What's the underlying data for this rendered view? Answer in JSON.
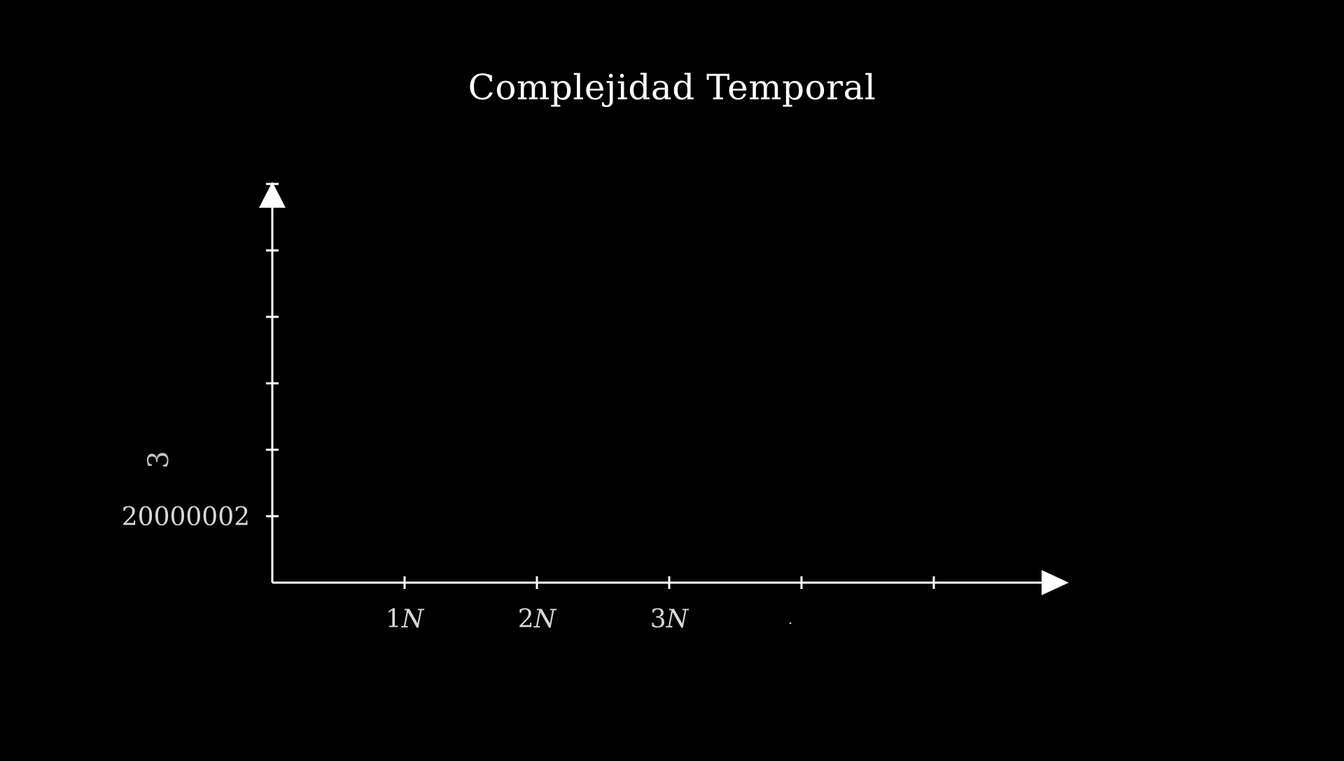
{
  "chart_data": {
    "type": "line",
    "title": "Complejidad Temporal",
    "xlabel": "",
    "ylabel": "",
    "x_ticks": [
      "1N",
      "2N",
      "3N",
      ".",
      ""
    ],
    "y_ticks": [
      "20000002",
      "",
      "",
      "",
      "",
      ""
    ],
    "y_tick_partial_glyph": "3",
    "series": [],
    "grid": false,
    "legend": "none",
    "colors": {
      "background": "#000000",
      "axis": "#ffffff",
      "text": "#ffffff",
      "label_dim": "#d8d8d8"
    }
  }
}
